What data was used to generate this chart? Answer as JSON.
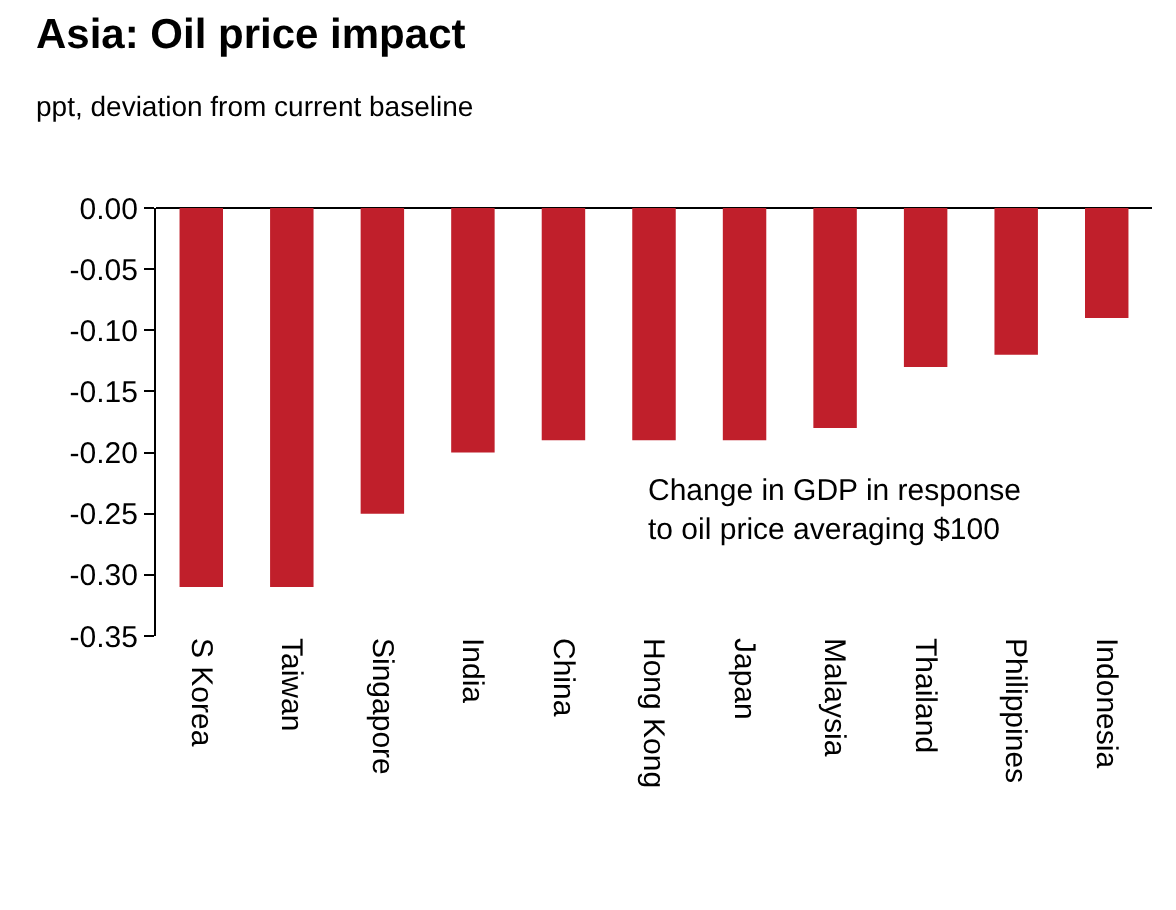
{
  "chart_data": {
    "type": "bar",
    "title": "Asia: Oil price impact",
    "subtitle": "ppt, deviation from current baseline",
    "categories": [
      "S Korea",
      "Taiwan",
      "Singapore",
      "India",
      "China",
      "Hong Kong",
      "Japan",
      "Malaysia",
      "Thailand",
      "Philippines",
      "Indonesia"
    ],
    "values": [
      -0.31,
      -0.31,
      -0.25,
      -0.2,
      -0.19,
      -0.19,
      -0.19,
      -0.18,
      -0.13,
      -0.12,
      -0.09
    ],
    "color": "#c01f2b",
    "ylim": [
      -0.35,
      0
    ],
    "yticks": [
      {
        "value": 0,
        "label": "0.00"
      },
      {
        "value": -0.05,
        "label": "-0.05"
      },
      {
        "value": -0.1,
        "label": "-0.10"
      },
      {
        "value": -0.15,
        "label": "-0.15"
      },
      {
        "value": -0.2,
        "label": "-0.20"
      },
      {
        "value": -0.25,
        "label": "-0.25"
      },
      {
        "value": -0.3,
        "label": "-0.30"
      },
      {
        "value": -0.35,
        "label": "-0.35"
      }
    ],
    "grid": false,
    "annotations": [
      "Change in GDP in response\nto oil price averaging $100"
    ]
  }
}
